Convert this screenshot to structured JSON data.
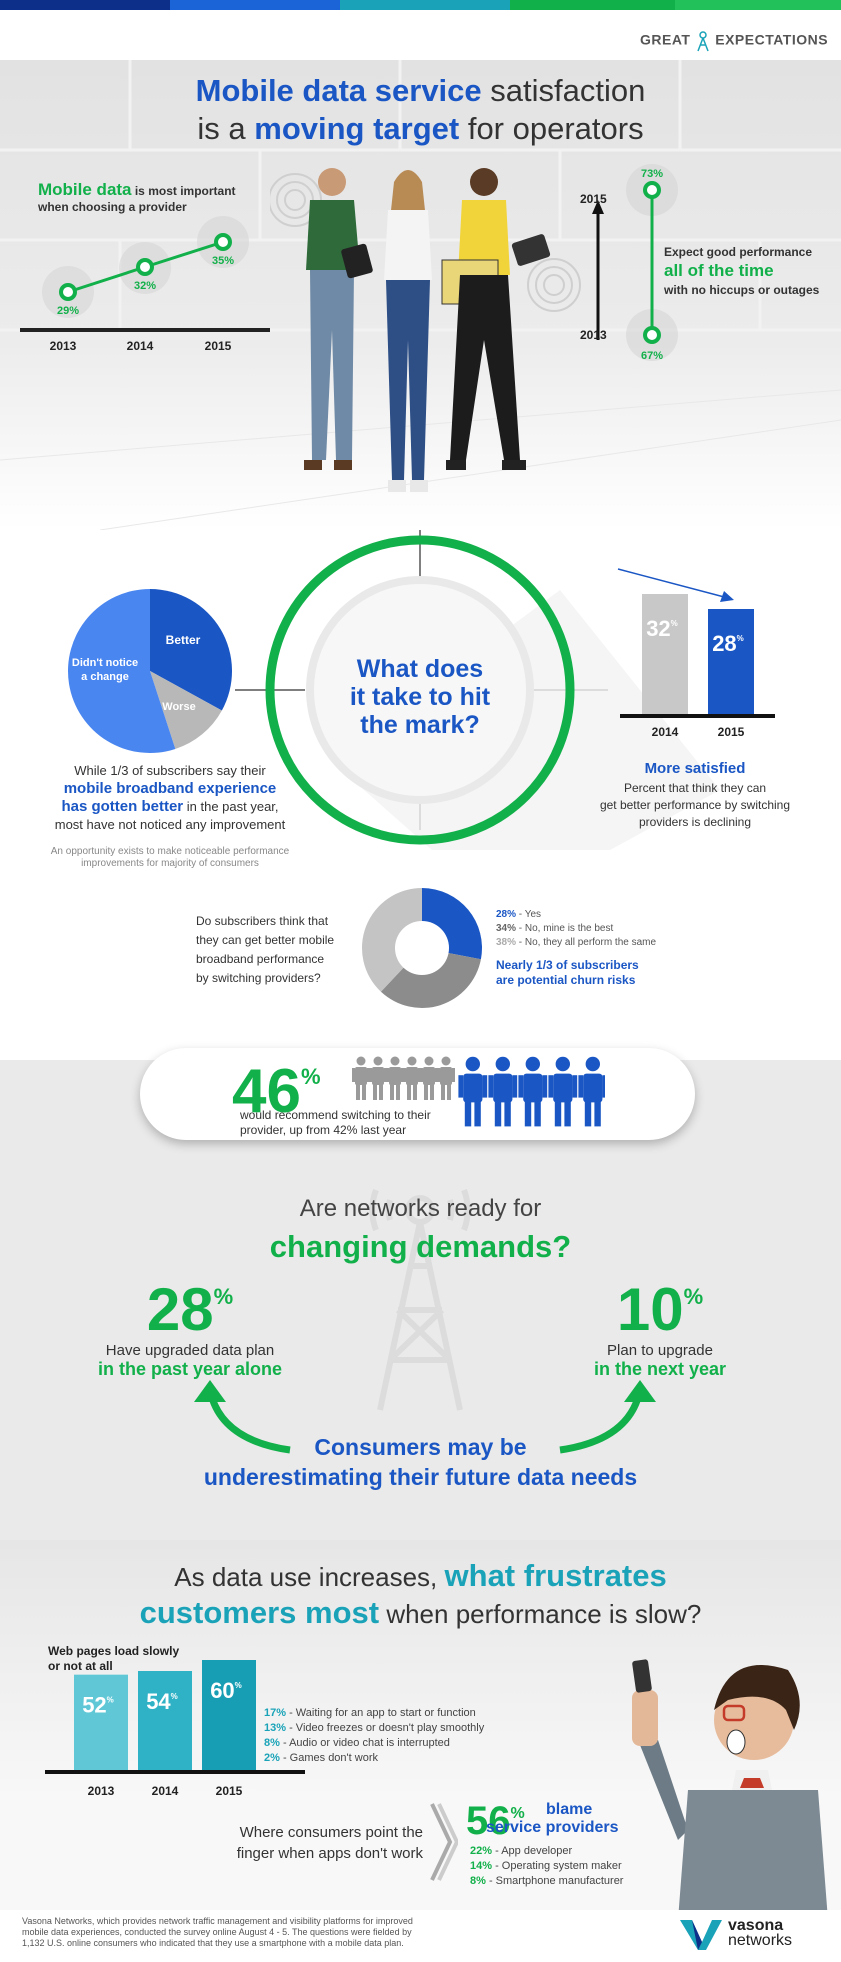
{
  "brand": {
    "great": "GREAT",
    "expectations": "EXPECTATIONS",
    "colors": {
      "blue": "#1a56c4",
      "green": "#12b04a",
      "teal": "#1aa3b8",
      "gray": "#c8c8c8"
    }
  },
  "hero": {
    "title_line1_bold": "Mobile data service",
    "title_line1_rest": " satisfaction",
    "title_line2_pre": "is a ",
    "title_line2_bold": "moving target",
    "title_line2_rest": " for operators",
    "left_stat_bold": "Mobile data",
    "left_stat_rest": " is most important",
    "left_stat_line2": "when choosing a provider",
    "right_line1": "Expect good performance",
    "right_line2": "all of the time",
    "right_line3": "with no hiccups or outages"
  },
  "chart_data": [
    {
      "type": "line",
      "x": [
        "2013",
        "2014",
        "2015"
      ],
      "values": [
        29,
        32,
        35
      ],
      "labels": [
        "29%",
        "32%",
        "35%"
      ]
    },
    {
      "type": "line",
      "x": [
        "2013",
        "2015"
      ],
      "values": [
        67,
        73
      ],
      "labels": [
        "67%",
        "73%"
      ],
      "x_labels": [
        "2015",
        "2013"
      ]
    },
    {
      "type": "pie",
      "slices": [
        {
          "name": "Better",
          "value": 33
        },
        {
          "name": "Worse",
          "value": 12
        },
        {
          "name": "Didn't notice a change",
          "value": 55
        }
      ]
    },
    {
      "type": "bar",
      "categories": [
        "2014",
        "2015"
      ],
      "values": [
        32,
        28
      ],
      "labels": [
        "32",
        "28"
      ],
      "unit": "%"
    },
    {
      "type": "pie",
      "slices": [
        {
          "name": "Yes",
          "value": 28
        },
        {
          "name": "No, mine is the best",
          "value": 34
        },
        {
          "name": "No, they all perform the same",
          "value": 38
        }
      ]
    },
    {
      "type": "bar",
      "categories": [
        "2013",
        "2014",
        "2015"
      ],
      "values": [
        52,
        54,
        60
      ],
      "labels": [
        "52",
        "54",
        "60"
      ],
      "unit": "%"
    }
  ],
  "mark": {
    "center_line1": "What does",
    "center_line2": "it take to hit",
    "center_line3": "the mark?",
    "left_text1": "While 1/3 of subscribers say their",
    "left_text2": "mobile broadband experience",
    "left_text3": "has gotten better",
    "left_text3_rest": " in the past year,",
    "left_text4": "most have not noticed any improvement",
    "left_note1": "An opportunity exists to make noticeable performance",
    "left_note2": "improvements for majority of consumers",
    "right_title": "More satisfied",
    "right_text1": "Percent that think they can",
    "right_text2": "get better performance by switching",
    "right_text3": "providers is declining",
    "pie_better": "Better",
    "pie_worse": "Worse",
    "pie_didnt1": "Didn't notice",
    "pie_didnt2": "a change"
  },
  "switching": {
    "q1": "Do subscribers think that",
    "q2": "they can get better mobile",
    "q3": "broadband performance",
    "q4": "by switching providers?",
    "legend": [
      {
        "pct": "28%",
        "text": " - Yes"
      },
      {
        "pct": "34%",
        "text": " - No, mine is the best"
      },
      {
        "pct": "38%",
        "text": " - No, they all perform the same"
      }
    ],
    "churn1": "Nearly 1/3 of subscribers",
    "churn2": "are potential churn risks"
  },
  "recommend": {
    "num": "46",
    "pct": "%",
    "line1": "would recommend switching to their",
    "line2": "provider, up from 42% last year",
    "people_highlighted": 5,
    "people_total": 11
  },
  "demands": {
    "title1": "Are networks ready for",
    "title2": "changing demands?",
    "left_num": "28",
    "left_line1": "Have upgraded data plan",
    "left_line2": "in the past year alone",
    "right_num": "10",
    "right_line1": "Plan to upgrade",
    "right_line2": "in the next year",
    "pct": "%",
    "bottom1": "Consumers may be",
    "bottom2": "underestimating their future data needs"
  },
  "frustrates": {
    "title1_pre": "As data use increases, ",
    "title1_bold": "what frustrates",
    "title2_bold": "customers most",
    "title2_rest": " when performance is slow?",
    "chart_label1": "Web pages load slowly",
    "chart_label2": "or not at all",
    "list": [
      {
        "pct": "17%",
        "text": " - Waiting for an app to start or function"
      },
      {
        "pct": "13%",
        "text": " - Video freezes or doesn't play smoothly"
      },
      {
        "pct": "8%",
        "text": " - Audio or video chat is interrupted"
      },
      {
        "pct": "2%",
        "text": " - Games don't work"
      }
    ],
    "finger1": "Where consumers point the",
    "finger2": "finger when apps don't work",
    "blame_num": "56",
    "blame_pct": "%",
    "blame1": "blame",
    "blame2": "service providers",
    "blame_list": [
      {
        "pct": "22%",
        "text": " - App developer"
      },
      {
        "pct": "14%",
        "text": " - Operating system maker"
      },
      {
        "pct": "8%",
        "text": " - Smartphone manufacturer"
      }
    ]
  },
  "footer": {
    "line1": "Vasona Networks, which provides network traffic management and visibility platforms for improved",
    "line2": "mobile data experiences, conducted the survey online August 4 - 5. The questions were fielded by",
    "line3": "1,132 U.S. online consumers who indicated that they use a smartphone with a mobile data plan.",
    "logo1": "vasona",
    "logo2": "networks"
  }
}
